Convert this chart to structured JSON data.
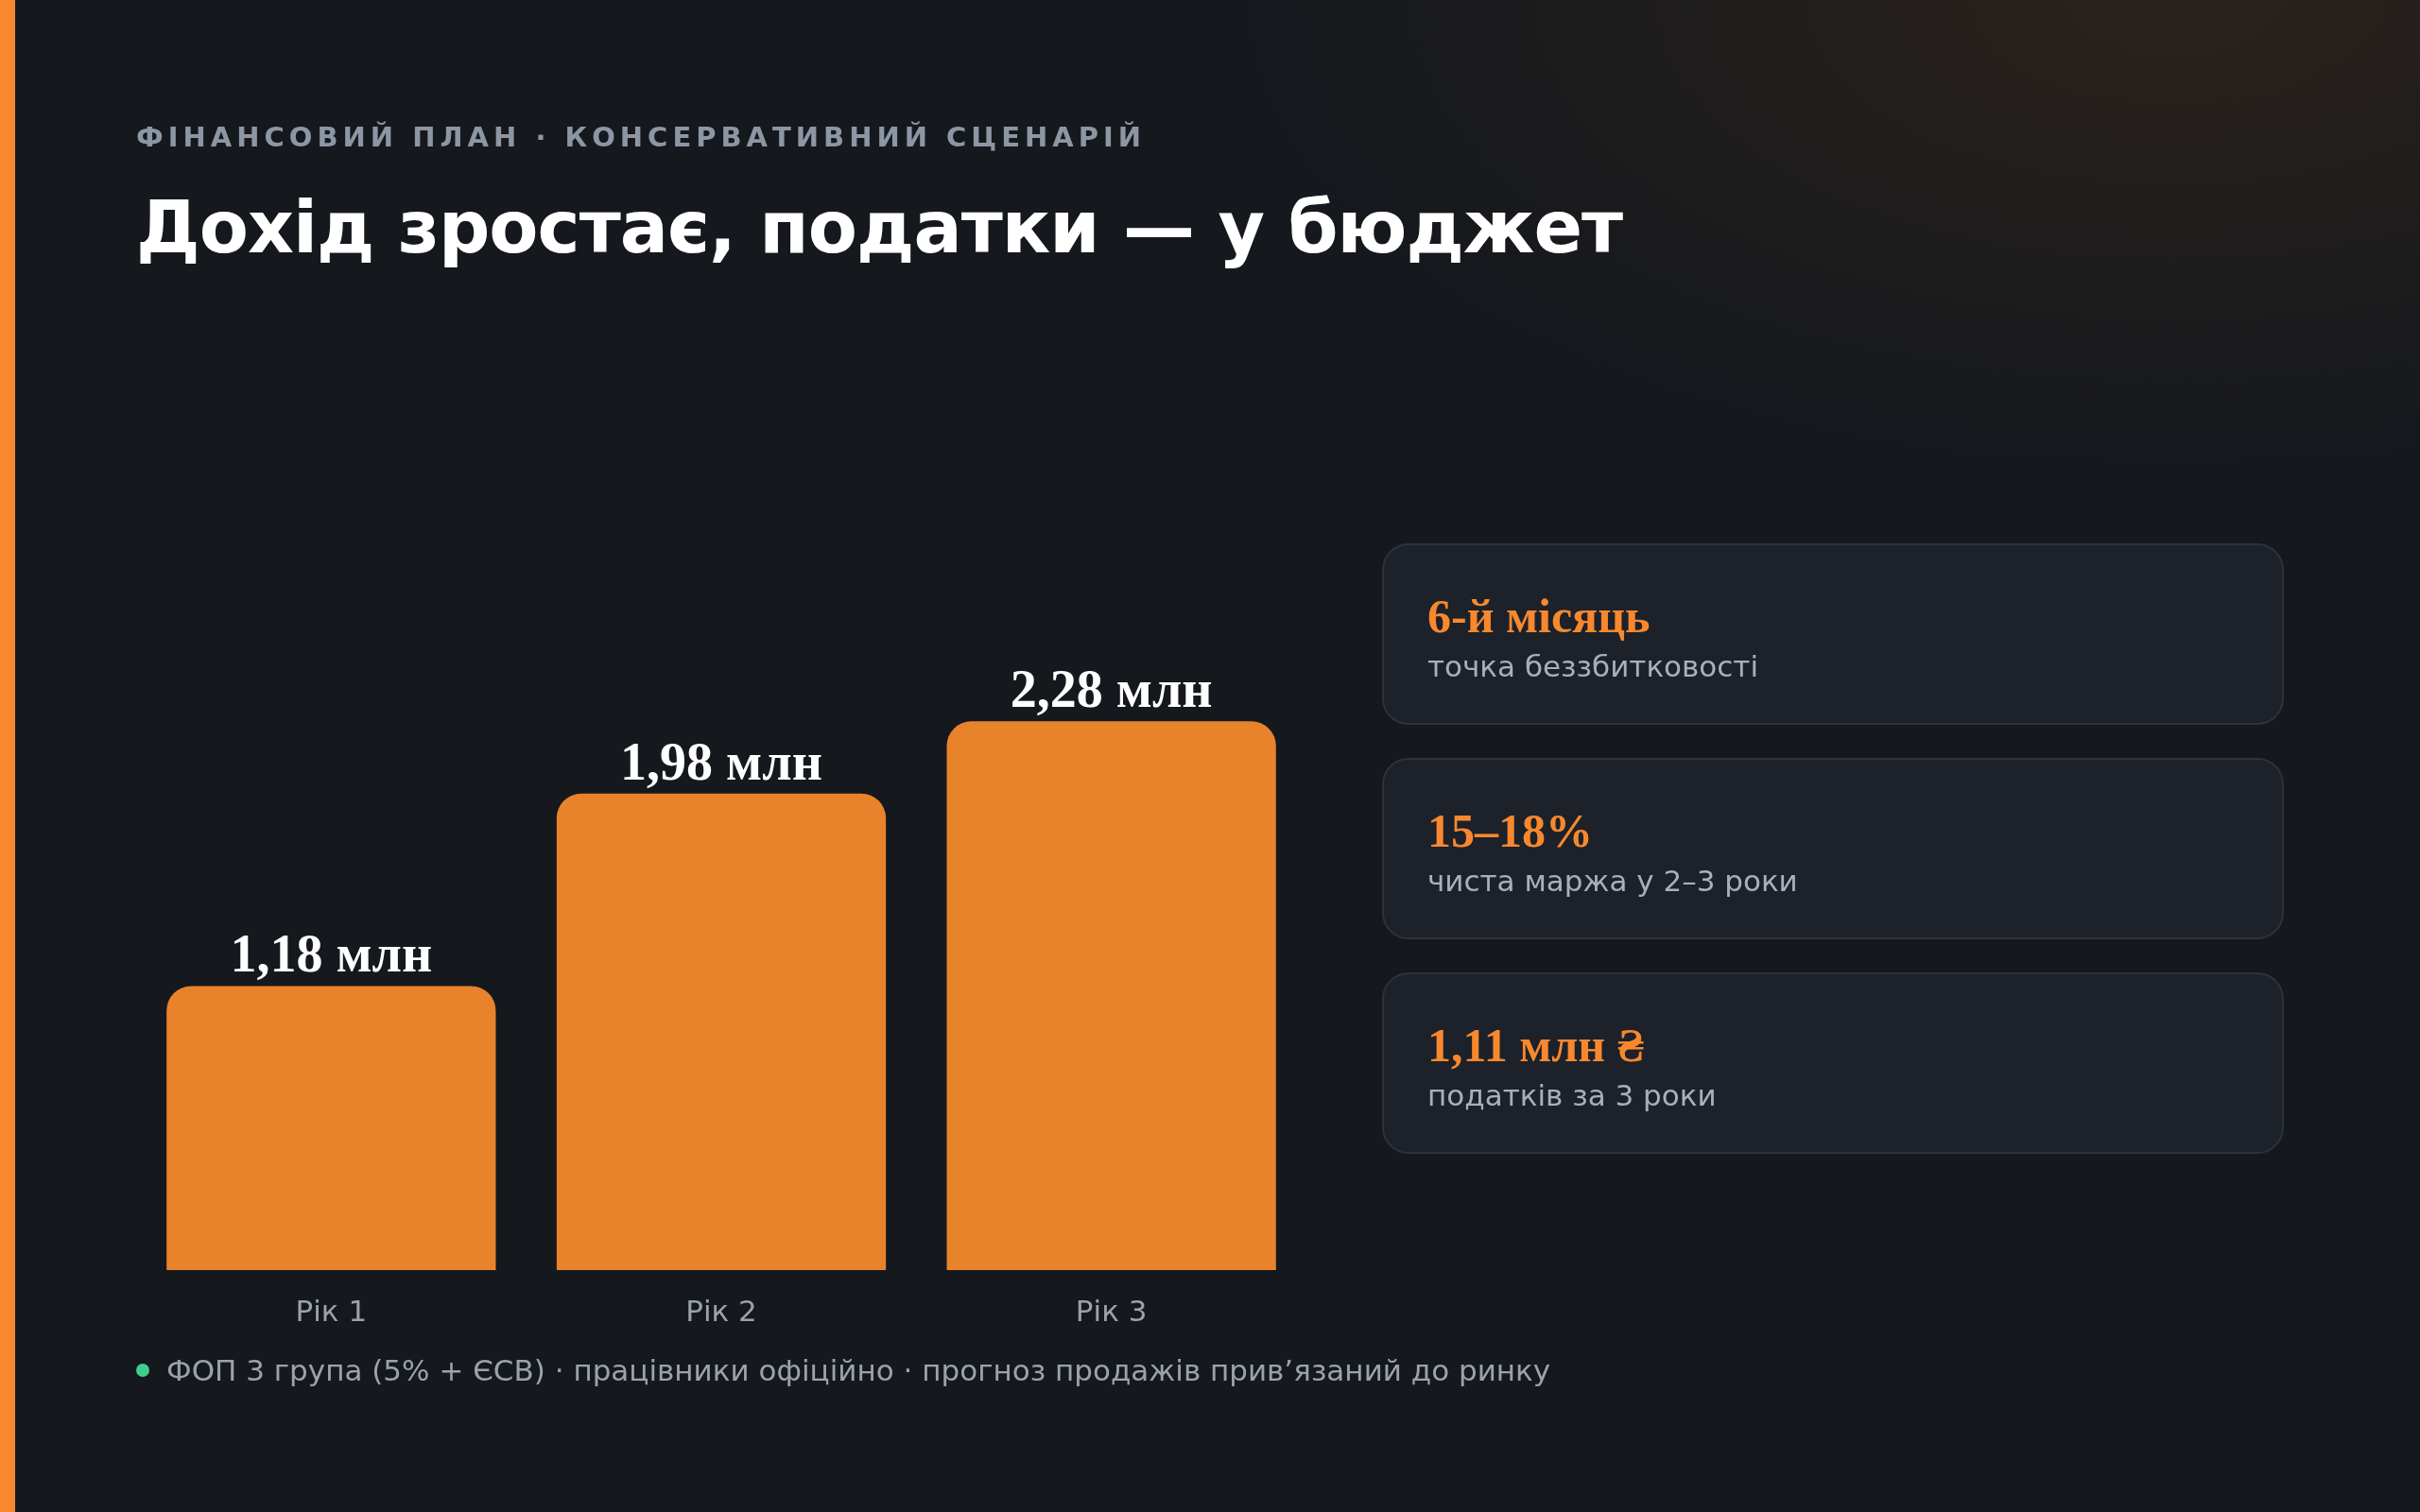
{
  "chart_data": [
    {
      "type": "bar",
      "title": "Дохід зростає, податки — у бюджет",
      "subtitle": "ФІНАНСОВИЙ ПЛАН · КОНСЕРВАТИВНИЙ СЦЕНАРІЙ",
      "categories": [
        "Рік 1",
        "Рік 2",
        "Рік 3"
      ],
      "values": [
        1.18,
        1.98,
        2.28
      ],
      "value_labels": [
        "1,18 млн",
        "1,98 млн",
        "2,28 млн"
      ],
      "color": "#e8832c",
      "annotations": [
        "ФОП 3 група (5% + ЄСВ) · працівники офіційно · прогноз продажів прив’язаний до ринку"
      ]
    },
    {
      "type": "other",
      "annotations": [
        "6-й місяць",
        "точка беззбитковості",
        "15–18%",
        "чиста маржа у 2–3 роки",
        "1,11 млн ₴",
        "податків за 3 роки"
      ]
    }
  ]
}
